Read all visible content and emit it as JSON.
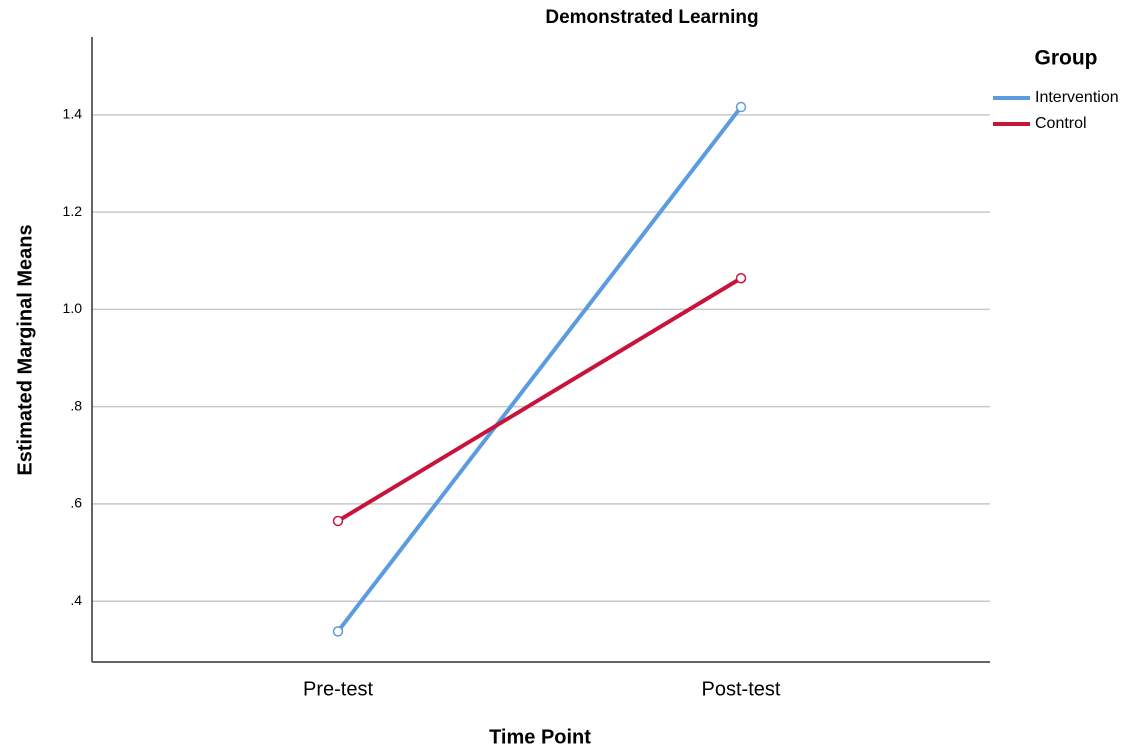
{
  "chart_data": {
    "type": "line",
    "title": "Demonstrated Learning",
    "x_label": "Time Point",
    "y_label": "Estimated Marginal Means",
    "categories": [
      "Pre-test",
      "Post-test"
    ],
    "series": [
      {
        "name": "Intervention",
        "color": "#5b9be0",
        "values": [
          0.338,
          1.416
        ]
      },
      {
        "name": "Control",
        "color": "#c8133a",
        "values": [
          0.565,
          1.064
        ]
      }
    ],
    "ylim": [
      0.275,
      1.56
    ],
    "yticks": [
      {
        "value": 0.4,
        "label": ".4"
      },
      {
        "value": 0.6,
        "label": ".6"
      },
      {
        "value": 0.8,
        "label": ".8"
      },
      {
        "value": 1,
        "label": "1.0"
      },
      1.2,
      1.4
    ],
    "grid": true,
    "legend_title": "Group",
    "legend": "right"
  }
}
